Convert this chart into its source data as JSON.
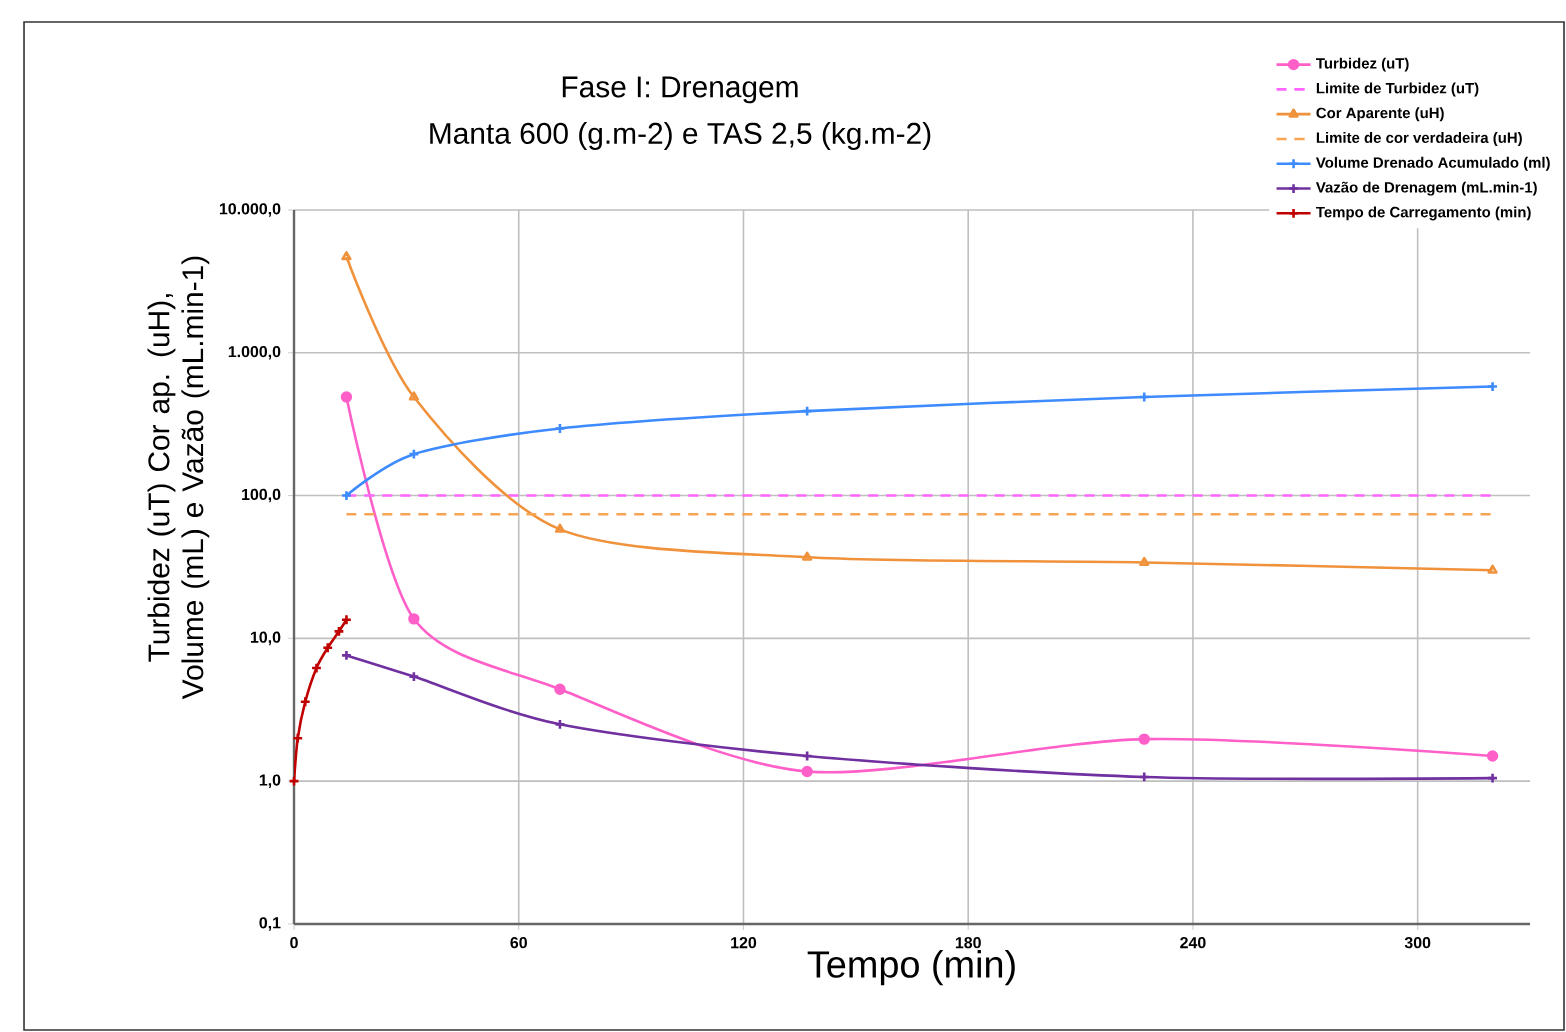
{
  "chart_data": {
    "type": "line",
    "title": "Fase I: Drenagem",
    "subtitle": "Manta 600 (g.m-2) e TAS 2,5 (kg.m-2)",
    "xlabel": "Tempo (min)",
    "ylabel": "Turbidez (uT) Cor ap. (uH), Volume (mL) e Vazão (mL.min-1)",
    "log": "y",
    "grid": true,
    "legend": "top right",
    "xlim": [
      0,
      330
    ],
    "xticks": [
      0,
      60,
      120,
      180,
      240,
      300
    ],
    "ylim": [
      0.1,
      10000
    ],
    "yticks": [
      {
        "value": 0.1,
        "label": "0,1"
      },
      {
        "value": 1,
        "label": "1,0"
      },
      {
        "value": 10,
        "label": "10,0"
      },
      {
        "value": 100,
        "label": "100,0"
      },
      {
        "value": 1000,
        "label": "1.000,0"
      },
      {
        "value": 10000,
        "label": "10.000,0"
      }
    ],
    "series": [
      {
        "name": "Turbidez (uT)",
        "color": "#ff5fc8",
        "marker": "circle",
        "line_style": "solid",
        "x": [
          14,
          32,
          71,
          137,
          227,
          320
        ],
        "values": [
          490,
          13.7,
          4.4,
          1.17,
          1.97,
          1.5
        ]
      },
      {
        "name": "Limite de Turbidez (uT)",
        "color": "#ff66ff",
        "marker": "none",
        "line_style": "dashed",
        "x": [
          14,
          320
        ],
        "values": [
          100,
          100
        ]
      },
      {
        "name": "Cor Aparente (uH)",
        "color": "#f0923c",
        "marker": "triangle",
        "line_style": "solid",
        "x": [
          14,
          32,
          71,
          137,
          227,
          320
        ],
        "values": [
          4700,
          490,
          58,
          37,
          34,
          30
        ]
      },
      {
        "name": "Limite de cor verdadeira (uH)",
        "color": "#f7a455",
        "marker": "none",
        "line_style": "dashed",
        "x": [
          14,
          320
        ],
        "values": [
          74,
          74
        ]
      },
      {
        "name": "Volume Drenado Acumulado (ml)",
        "color": "#3d8bff",
        "marker": "cross",
        "line_style": "solid",
        "x": [
          14,
          32,
          71,
          137,
          227,
          320
        ],
        "values": [
          100,
          195,
          295,
          390,
          490,
          580
        ]
      },
      {
        "name": "Vazão de Drenagem (mL.min-1)",
        "color": "#7030a0",
        "marker": "cross",
        "line_style": "solid",
        "x": [
          14,
          32,
          71,
          137,
          227,
          320
        ],
        "values": [
          7.6,
          5.4,
          2.5,
          1.5,
          1.07,
          1.05
        ]
      },
      {
        "name": "Tempo de Carregamento (min)",
        "color": "#c00000",
        "marker": "cross",
        "line_style": "solid",
        "x": [
          0,
          1,
          3,
          6,
          9,
          12,
          14
        ],
        "values": [
          1,
          2,
          3.6,
          6.2,
          8.6,
          11.2,
          13.5
        ]
      }
    ]
  }
}
